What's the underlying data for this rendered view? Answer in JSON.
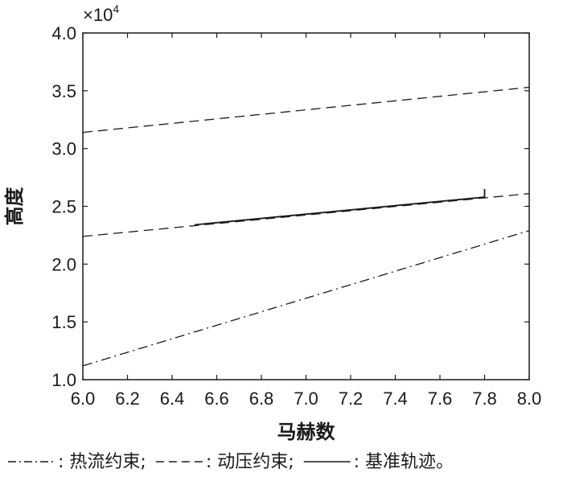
{
  "chart_data": {
    "type": "line",
    "xlabel": "马赫数",
    "ylabel": "高度",
    "y_multiplier": "×10",
    "y_multiplier_exponent": "4",
    "xlim": [
      6.0,
      8.0
    ],
    "ylim": [
      1.0,
      4.0
    ],
    "x_ticks": [
      6.0,
      6.2,
      6.4,
      6.6,
      6.8,
      7.0,
      7.2,
      7.4,
      7.6,
      7.8,
      8.0
    ],
    "x_tick_labels": [
      "6.0",
      "6.2",
      "6.4",
      "6.6",
      "6.8",
      "7.0",
      "7.2",
      "7.4",
      "7.6",
      "7.8",
      "8.0"
    ],
    "y_ticks": [
      1.0,
      1.5,
      2.0,
      2.5,
      3.0,
      3.5,
      4.0
    ],
    "y_tick_labels": [
      "1.0",
      "1.5",
      "2.0",
      "2.5",
      "3.0",
      "3.5",
      "4.0"
    ],
    "grid": false,
    "legend_position": "bottom",
    "series": [
      {
        "name": "热流约束",
        "style": "dashdot",
        "x": [
          6.0,
          8.0
        ],
        "y": [
          1.12,
          2.29
        ]
      },
      {
        "name": "动压约束",
        "style": "dashed",
        "x": [
          6.0,
          8.0
        ],
        "y": [
          2.24,
          2.61
        ]
      },
      {
        "name": "",
        "style": "dashed",
        "x": [
          6.0,
          8.0
        ],
        "y": [
          3.14,
          3.53
        ]
      },
      {
        "name": "基准轨迹",
        "style": "solid",
        "x": [
          6.5,
          7.8,
          7.8
        ],
        "y": [
          2.34,
          2.58,
          2.65
        ]
      }
    ],
    "legend": [
      {
        "label": "热流约束",
        "style": "dashdot",
        "suffix": ";"
      },
      {
        "label": "动压约束",
        "style": "dashed",
        "suffix": ";"
      },
      {
        "label": "基准轨迹",
        "style": "solid",
        "suffix": "。"
      }
    ],
    "legend_separator": ":",
    "colors": {
      "ink": "#1a1a1a",
      "background": "#ffffff"
    }
  }
}
